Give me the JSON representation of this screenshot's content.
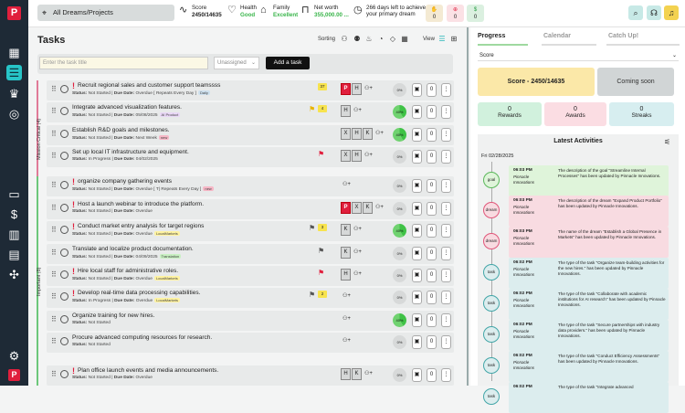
{
  "topbar": {
    "dreams_select": "All Dreams/Projects",
    "score_label": "Score",
    "score_value": "2450/14635",
    "health_label": "Health",
    "health_value": "Good",
    "family_label": "Family",
    "family_value": "Excellent",
    "networth_label": "Net worth",
    "networth_value": "355,000.00 ...",
    "days_line1": "266 days left to achieve",
    "days_line2": "your primary dream",
    "mini": [
      {
        "icon": "thumbs-up",
        "value": "0"
      },
      {
        "icon": "target",
        "value": "0"
      },
      {
        "icon": "dollar",
        "value": "0"
      }
    ]
  },
  "tasks": {
    "title": "Tasks",
    "sorting_label": "Sorting",
    "view_label": "View",
    "input_placeholder": "Enter the task title",
    "assignee_placeholder": "Unassigned",
    "add_label": "Add a task",
    "groups": [
      {
        "label": "Mission Critical (4)"
      },
      {
        "label": "Important (8)"
      }
    ],
    "rows": [
      {
        "excl": "!",
        "name": "Recruit regional sales and customer support teamssss",
        "status": "Not Started",
        "due": "Overdue",
        "extra": "[ Repeats Every Day ]",
        "tag": "Daily",
        "tagclass": "std",
        "count": "37",
        "flag": "",
        "assignees": [
          "P",
          "H"
        ],
        "progress": "0%",
        "pct": 0
      },
      {
        "excl": "",
        "name": "Integrate advanced visualization features.",
        "status": "Not Started",
        "due": "05/08/2025",
        "extra": "",
        "tag": "AI Product",
        "tagclass": "ai",
        "count": "4",
        "flag": "yellow",
        "assignees": [
          "H"
        ],
        "progress": "40%",
        "pct": 40
      },
      {
        "excl": "",
        "name": "Establish R&D goals and milestones.",
        "status": "Not Started",
        "due": "Next Week",
        "extra": "",
        "tag": "new",
        "tagclass": "new",
        "count": "",
        "flag": "",
        "assignees": [
          "X",
          "H",
          "K"
        ],
        "progress": "40%",
        "pct": 40
      },
      {
        "excl": "",
        "name": "Set up local IT infrastructure and equipment.",
        "status": "In Progress",
        "due": "04/02/2025",
        "extra": "",
        "tag": "",
        "tagclass": "",
        "count": "",
        "flag": "red",
        "assignees": [
          "X",
          "H"
        ],
        "progress": "0%",
        "pct": 0
      },
      {
        "excl": "!",
        "name": "organize company gathering events",
        "status": "Not Started",
        "due": "Overdue",
        "extra": "[ T| Repeats Every Day ]",
        "tag": "new",
        "tagclass": "new",
        "count": "",
        "flag": "",
        "assignees": [],
        "progress": "0%",
        "pct": 0
      },
      {
        "excl": "!",
        "name": "Host a launch webinar to introduce the platform.",
        "status": "Not Started",
        "due": "Overdue",
        "extra": "",
        "tag": "",
        "tagclass": "",
        "count": "",
        "flag": "",
        "assignees": [
          "P",
          "X",
          "K"
        ],
        "progress": "0%",
        "pct": 0
      },
      {
        "excl": "!",
        "name": "Conduct market entry analysis for target regions",
        "status": "Not Started",
        "due": "Overdue",
        "extra": "",
        "tag": "LocalMarkets",
        "tagclass": "loc",
        "count": "3",
        "flag": "grey",
        "assignees": [
          "K"
        ],
        "progress": "40%",
        "pct": 40
      },
      {
        "excl": "",
        "name": "Translate and localize product documentation.",
        "status": "Not Started",
        "due": "04/09/2025",
        "extra": "",
        "tag": "Translation",
        "tagclass": "trn",
        "count": "",
        "flag": "grey",
        "assignees": [
          "K"
        ],
        "progress": "0%",
        "pct": 0
      },
      {
        "excl": "!",
        "name": "Hire local staff for administrative roles.",
        "status": "Not Started",
        "due": "Overdue",
        "extra": "",
        "tag": "LocalMarkets",
        "tagclass": "loc",
        "count": "",
        "flag": "red",
        "assignees": [
          "H"
        ],
        "progress": "0%",
        "pct": 0
      },
      {
        "excl": "!",
        "name": "Develop real-time data processing capabilities.",
        "status": "In Progress",
        "due": "Overdue",
        "extra": "",
        "tag": "LocalMarkets",
        "tagclass": "loc",
        "count": "2",
        "flag": "grey",
        "assignees": [],
        "progress": "0%",
        "pct": 0
      },
      {
        "excl": "",
        "name": "Organize training for new hires.",
        "status": "Not Started",
        "due": "",
        "extra": "",
        "tag": "",
        "tagclass": "",
        "count": "",
        "flag": "",
        "assignees": [],
        "progress": "40%",
        "pct": 40
      },
      {
        "excl": "",
        "name": "Procure advanced computing resources for research.",
        "status": "Not Started",
        "due": "",
        "extra": "",
        "tag": "",
        "tagclass": "",
        "count": "",
        "flag": "",
        "assignees": [],
        "progress": "0%",
        "pct": 0
      },
      {
        "excl": "!",
        "name": "Plan office launch events and media announcements.",
        "status": "Not Started",
        "due": "Overdue",
        "extra": "",
        "tag": "",
        "tagclass": "",
        "count": "",
        "flag": "",
        "assignees": [
          "H",
          "K"
        ],
        "progress": "0%",
        "pct": 0
      }
    ]
  },
  "right": {
    "tabs": [
      "Progress",
      "Calendar",
      "Catch Up!"
    ],
    "score_select": "Score",
    "score_card": "Score - 2450/14635",
    "coming_soon": "Coming soon",
    "rewards_value": "0",
    "rewards_label": "Rewards",
    "awards_value": "0",
    "awards_label": "Awards",
    "streaks_value": "0",
    "streaks_label": "Streaks",
    "activities_title": "Latest Activities",
    "date": "Fri 02/28/2025",
    "activities": [
      {
        "type": "goal",
        "time": "06:03 PM",
        "who": "Pinnacle Innovations",
        "text": "The description of the goal \"Streamline Internal Processes\" has been updated by Pinnacle Innovations."
      },
      {
        "type": "dream",
        "time": "06:03 PM",
        "who": "Pinnacle Innovations",
        "text": "The description of the dream \"Expand Product Portfolio\" has been updated by Pinnacle Innovations."
      },
      {
        "type": "dream",
        "time": "06:03 PM",
        "who": "Pinnacle Innovations",
        "text": "The name of the dream \"Establish a Global Presence in Markets\" has been updated by Pinnacle Innovations."
      },
      {
        "type": "task",
        "time": "06:02 PM",
        "who": "Pinnacle Innovations",
        "text": "The type of the task \"Organize team-building activities for the new hires.\" has been updated by Pinnacle Innovations."
      },
      {
        "type": "task",
        "time": "06:02 PM",
        "who": "Pinnacle Innovations",
        "text": "The type of the task \"Collaborate with academic institutions for AI research\" has been updated by Pinnacle Innovations."
      },
      {
        "type": "task",
        "time": "06:02 PM",
        "who": "Pinnacle Innovations",
        "text": "The type of the task \"Secure partnerships with industry data providers.\" has been updated by Pinnacle Innovations."
      },
      {
        "type": "task",
        "time": "06:02 PM",
        "who": "Pinnacle Innovations",
        "text": "The type of the task \"Conduct Efficiency Assessments\" has been updated by Pinnacle Innovations."
      },
      {
        "type": "task",
        "time": "06:02 PM",
        "who": "",
        "text": "The type of the task \"Integrate advanced"
      }
    ]
  }
}
